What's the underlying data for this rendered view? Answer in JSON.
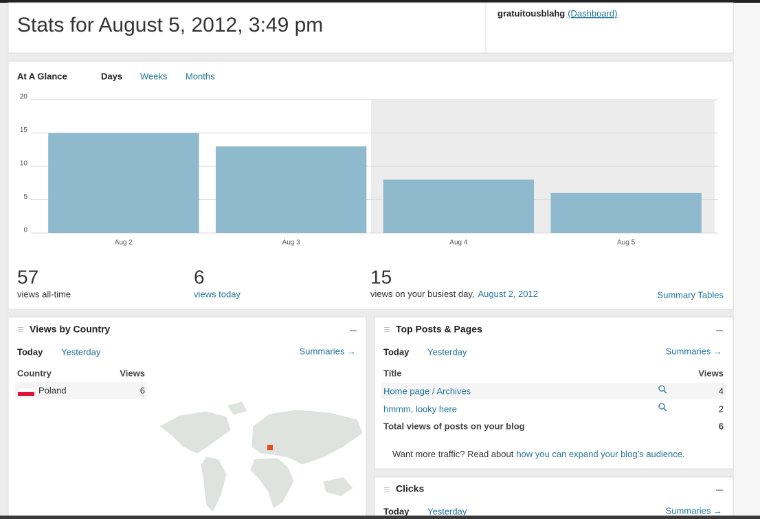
{
  "header": {
    "title": "Stats for August 5, 2012, 3:49 pm",
    "user": "gratuitousblahg",
    "dashboard": "(Dashboard)"
  },
  "glance": {
    "title": "At A Glance",
    "tabs": [
      "Days",
      "Weeks",
      "Months"
    ]
  },
  "chart_data": {
    "type": "bar",
    "categories": [
      "Aug 2",
      "Aug 3",
      "Aug 4",
      "Aug 5"
    ],
    "values": [
      15,
      13,
      8,
      6
    ],
    "color": "#8fb9cc",
    "ylim": [
      0,
      20
    ],
    "yticks": [
      0,
      5,
      10,
      15,
      20
    ],
    "grid": true
  },
  "summary": {
    "all_time": 57,
    "all_time_label": "views all-time",
    "today": 6,
    "today_label": "views today",
    "busiest": 15,
    "busiest_label": "views on your busiest day,",
    "busiest_date": "August 2, 2012",
    "summary_tables": "Summary Tables"
  },
  "country": {
    "title": "Views by Country",
    "tabs": [
      "Today",
      "Yesterday"
    ],
    "summaries": "Summaries →",
    "columns": [
      "Country",
      "Views"
    ],
    "rows": [
      [
        "Poland",
        6
      ]
    ]
  },
  "top_posts": {
    "title": "Top Posts & Pages",
    "tabs": [
      "Today",
      "Yesterday"
    ],
    "summaries": "Summaries →",
    "columns": [
      "Title",
      "Views"
    ],
    "rows": [
      [
        "Home page / Archives",
        4
      ],
      [
        "hmmm, looky here",
        2
      ]
    ],
    "total": [
      "Total views of posts on your blog",
      6
    ],
    "traffic_text": "Want more traffic? Read about",
    "traffic_link": "how you can expand your blog's audience."
  },
  "clicks": {
    "title": "Clicks",
    "tabs": [
      "Today",
      "Yesterday"
    ],
    "summaries": "Summaries →"
  }
}
